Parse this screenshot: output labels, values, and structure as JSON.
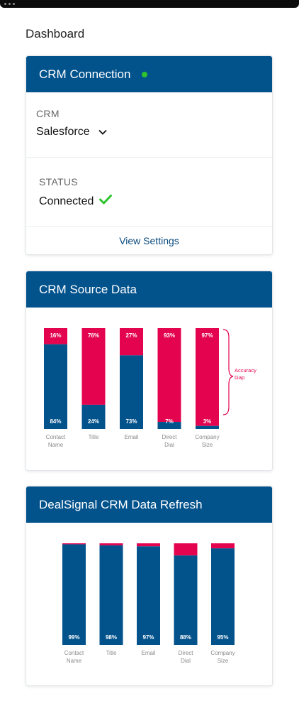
{
  "page": {
    "title": "Dashboard"
  },
  "crm_card": {
    "title": "CRM Connection",
    "crm_label": "CRM",
    "crm_value": "Salesforce",
    "status_label": "STATUS",
    "status_value": "Connected",
    "view_settings": "View Settings"
  },
  "colors": {
    "header": "#02528c",
    "blue": "#02528c",
    "red": "#e4034f",
    "green": "#2ec42e"
  },
  "chart_data": [
    {
      "type": "bar",
      "stacked": true,
      "title": "CRM Source Data",
      "categories": [
        [
          "Contact",
          "Name"
        ],
        [
          "Title"
        ],
        [
          "Email"
        ],
        [
          "Direct",
          "Dial"
        ],
        [
          "Company",
          "Size"
        ]
      ],
      "series": [
        {
          "values": [
            84,
            24,
            73,
            7,
            3
          ],
          "labels": [
            "84%",
            "24%",
            "73%",
            "7%",
            "3%"
          ]
        },
        {
          "values": [
            16,
            76,
            27,
            93,
            97
          ],
          "labels": [
            "16%",
            "76%",
            "27%",
            "93%",
            "97%"
          ]
        }
      ],
      "annotation": [
        "Accuracy",
        "Gap"
      ],
      "ylim": [
        0,
        100
      ]
    },
    {
      "type": "bar",
      "stacked": true,
      "title": "DealSignal CRM Data Refresh",
      "categories": [
        [
          "Contact",
          "Name"
        ],
        [
          "Title"
        ],
        [
          "Email"
        ],
        [
          "Direct",
          "Dial"
        ],
        [
          "Company",
          "Size"
        ]
      ],
      "series": [
        {
          "values": [
            99,
            98,
            97,
            88,
            95
          ],
          "labels": [
            "99%",
            "98%",
            "97%",
            "88%",
            "95%"
          ]
        },
        {
          "values": [
            1,
            2,
            3,
            12,
            5
          ],
          "labels": []
        }
      ],
      "ylim": [
        0,
        100
      ]
    }
  ]
}
